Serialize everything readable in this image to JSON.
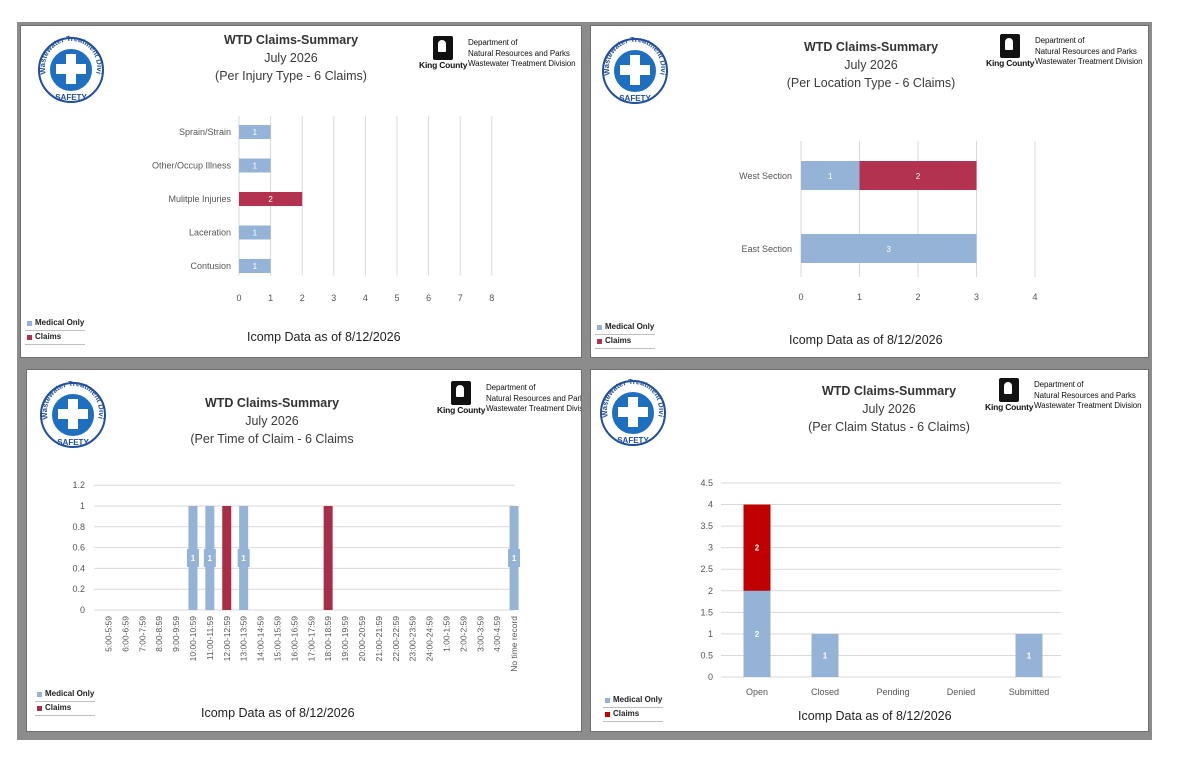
{
  "colors": {
    "medical": "#95b3d7",
    "claims_injury": "#b33250",
    "claims_location": "#b33250",
    "claims_time": "#a72e48",
    "claims_status": "#c00000",
    "grid": "#d9d9d9",
    "frame": "#8c8c8c"
  },
  "logo": {
    "ring_text": "Wastewater Treatment Division",
    "banner": "SAFETY",
    "icon": "white-cross-icon"
  },
  "agency": {
    "name": "King County",
    "dept_lines": [
      "Department of",
      "Natural Resources and Parks",
      "Wastewater Treatment Division"
    ]
  },
  "legend": {
    "medical": "Medical Only",
    "claims": "Claims"
  },
  "panels": [
    {
      "title": "WTD Claims-Summary",
      "subtitle": "July 2026",
      "subtitle2": "(Per Injury Type - 6 Claims)",
      "footer": "Icomp Data as of 8/12/2026"
    },
    {
      "title": "WTD Claims-Summary",
      "subtitle": "July 2026",
      "subtitle2": "(Per Location Type - 6 Claims)",
      "footer": "Icomp Data as of 8/12/2026"
    },
    {
      "title": "WTD Claims-Summary",
      "subtitle": "July 2026",
      "subtitle2": "(Per Time of Claim - 6 Claims",
      "footer": "Icomp Data as of 8/12/2026"
    },
    {
      "title": "WTD Claims-Summary",
      "subtitle": "July 2026",
      "subtitle2": "(Per Claim Status - 6 Claims)",
      "footer": "Icomp Data as of 8/12/2026"
    }
  ],
  "chart_data": [
    {
      "type": "bar",
      "orientation": "horizontal",
      "categories": [
        "Sprain/Strain",
        "Other/Occup Illness",
        "Mulitple Injuries",
        "Laceration",
        "Contusion"
      ],
      "series": [
        {
          "name": "Medical Only",
          "values": [
            1,
            1,
            0,
            1,
            1
          ]
        },
        {
          "name": "Claims",
          "values": [
            0,
            0,
            2,
            0,
            0
          ]
        }
      ],
      "xticks": [
        0,
        1,
        2,
        3,
        4,
        5,
        6,
        7,
        8
      ],
      "xlim": [
        0,
        8
      ],
      "grid": true,
      "legend": "bottom-left"
    },
    {
      "type": "bar",
      "orientation": "horizontal",
      "stacked": true,
      "categories": [
        "West Section",
        "East Section"
      ],
      "series": [
        {
          "name": "Medical Only",
          "values": [
            1,
            3
          ]
        },
        {
          "name": "Claims",
          "values": [
            2,
            0
          ]
        }
      ],
      "xticks": [
        0,
        1,
        2,
        3,
        4
      ],
      "xlim": [
        0,
        4
      ],
      "grid": true,
      "legend": "bottom-left"
    },
    {
      "type": "bar",
      "categories": [
        "5:00-5:59",
        "6:00-6:59",
        "7:00-7:59",
        "8:00-8:59",
        "9:00-9:59",
        "10:00-10:59",
        "11:00-11:59",
        "12:00-12:59",
        "13:00-13:59",
        "14:00-14:59",
        "15:00-15:59",
        "16:00-16:59",
        "17:00-17:59",
        "18:00-18:59",
        "19:00-19:59",
        "20:00-20:59",
        "21:00-21:59",
        "22:00-22:59",
        "23:00-23:59",
        "24:00-24:59",
        "1:00-1:59",
        "2:00-2:59",
        "3:00-3:59",
        "4:00-4:59",
        "No time record"
      ],
      "series": [
        {
          "name": "Medical Only",
          "values": [
            0,
            0,
            0,
            0,
            0,
            1,
            1,
            0,
            1,
            0,
            0,
            0,
            0,
            0,
            0,
            0,
            0,
            0,
            0,
            0,
            0,
            0,
            0,
            0,
            1
          ]
        },
        {
          "name": "Claims",
          "values": [
            0,
            0,
            0,
            0,
            0,
            0,
            0,
            1,
            0,
            0,
            0,
            0,
            0,
            1,
            0,
            0,
            0,
            0,
            0,
            0,
            0,
            0,
            0,
            0,
            0
          ]
        }
      ],
      "yticks": [
        "0",
        "0.2",
        "0.4",
        "0.6",
        "0.8",
        "1",
        "1.2"
      ],
      "ylim": [
        0,
        1.2
      ],
      "grid": true,
      "legend": "bottom-left"
    },
    {
      "type": "bar",
      "stacked": true,
      "categories": [
        "Open",
        "Closed",
        "Pending",
        "Denied",
        "Submitted"
      ],
      "series": [
        {
          "name": "Medical Only",
          "values": [
            2,
            1,
            0,
            0,
            1
          ]
        },
        {
          "name": "Claims",
          "values": [
            2,
            0,
            0,
            0,
            0
          ]
        }
      ],
      "yticks": [
        "0",
        "0.5",
        "1",
        "1.5",
        "2",
        "2.5",
        "3",
        "3.5",
        "4",
        "4.5"
      ],
      "ylim": [
        0,
        4.5
      ],
      "grid": true,
      "legend": "bottom-left"
    }
  ]
}
